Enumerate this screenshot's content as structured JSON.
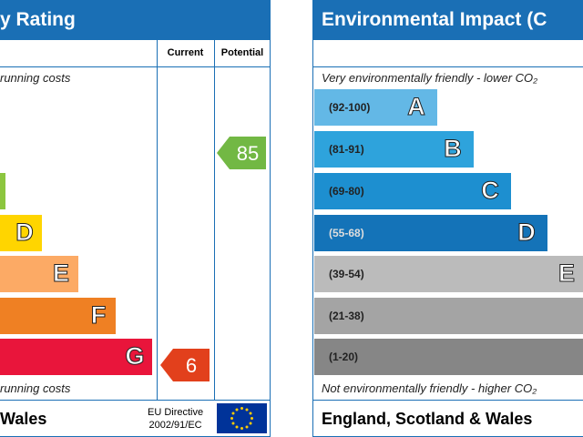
{
  "left": {
    "title": "y Rating",
    "col_current": "Current",
    "col_potential": "Potential",
    "top_note": "running costs",
    "bottom_note": "running costs",
    "bands": [
      {
        "letter": "",
        "color": "#8cc63f",
        "width": 6
      },
      {
        "letter": "D",
        "color": "#ffd500",
        "width": 46
      },
      {
        "letter": "E",
        "color": "#fcaa65",
        "width": 86
      },
      {
        "letter": "F",
        "color": "#ef8023",
        "width": 127
      },
      {
        "letter": "G",
        "color": "#e9153b",
        "width": 167
      }
    ],
    "potential": {
      "value": "85",
      "color": "#72b844"
    },
    "current": {
      "value": "6",
      "color": "#e2401c"
    },
    "footer": "Wales",
    "directive": [
      "EU Directive",
      "2002/91/EC"
    ]
  },
  "right": {
    "title": "Environmental Impact (C",
    "top_note": "Very environmentally friendly - lower CO₂",
    "bottom_note": "Not environmentally friendly - higher CO₂",
    "bands": [
      {
        "range": "(92-100)",
        "letter": "A",
        "color": "#63b8e6",
        "width": 135
      },
      {
        "range": "(81-91)",
        "letter": "B",
        "color": "#2ea3dc",
        "width": 175
      },
      {
        "range": "(69-80)",
        "letter": "C",
        "color": "#1d8fd0",
        "width": 216
      },
      {
        "range": "(55-68)",
        "letter": "D",
        "color": "#1473b8",
        "width": 256
      },
      {
        "range": "(39-54)",
        "letter": "E",
        "color": "#bbbbbb",
        "width": 300
      },
      {
        "range": "(21-38)",
        "letter": "",
        "color": "#a4a4a4",
        "width": 300
      },
      {
        "range": "(1-20)",
        "letter": "",
        "color": "#868686",
        "width": 300
      }
    ],
    "footer": "England, Scotland & Wales"
  }
}
